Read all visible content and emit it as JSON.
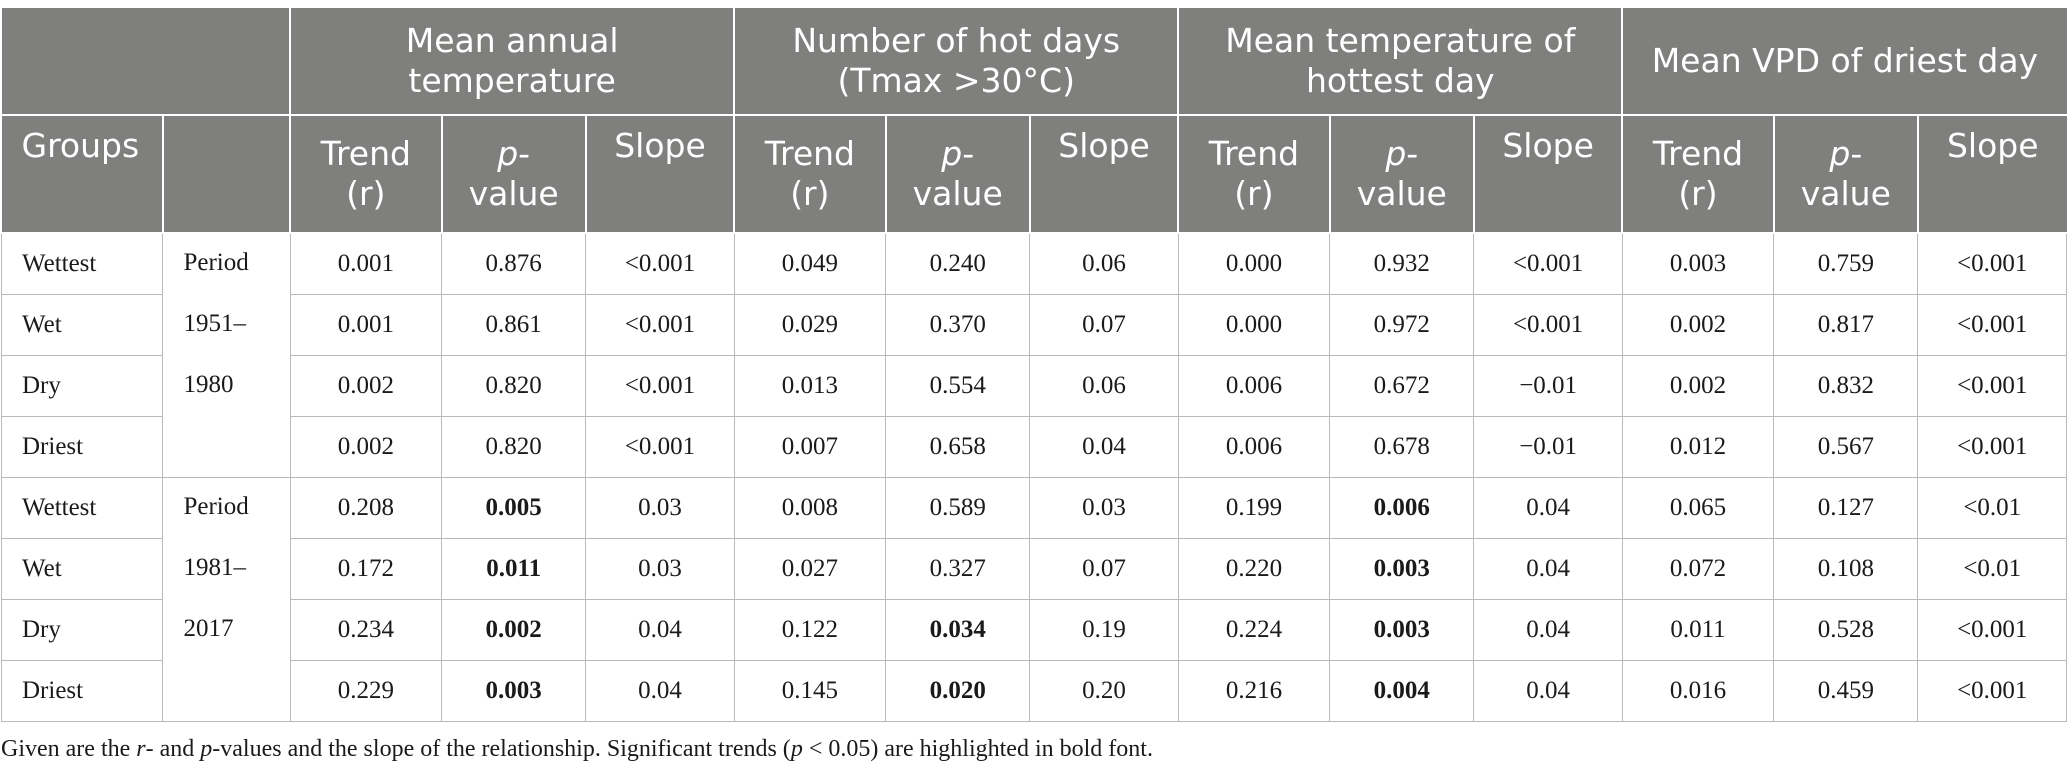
{
  "headers": {
    "groups": "Groups",
    "mean_annual_temp": "Mean annual  temperature",
    "hot_days": "Number of hot days (Tmax >30°C)",
    "mean_temp_hottest": "Mean temperature of hottest day",
    "mean_vpd": "Mean VPD of driest day",
    "trend": "Trend (r)",
    "p_italic": "p",
    "p_rest": "- value",
    "slope": "Slope"
  },
  "periods": [
    {
      "lines": [
        "Period",
        "1951–",
        "1980"
      ],
      "rows": [
        {
          "group": "Wettest",
          "cells": [
            "0.001",
            "0.876",
            "<0.001",
            "0.049",
            "0.240",
            "0.06",
            "0.000",
            "0.932",
            "<0.001",
            "0.003",
            "0.759",
            "<0.001"
          ],
          "bold": []
        },
        {
          "group": "Wet",
          "cells": [
            "0.001",
            "0.861",
            "<0.001",
            "0.029",
            "0.370",
            "0.07",
            "0.000",
            "0.972",
            "<0.001",
            "0.002",
            "0.817",
            "<0.001"
          ],
          "bold": []
        },
        {
          "group": "Dry",
          "cells": [
            "0.002",
            "0.820",
            "<0.001",
            "0.013",
            "0.554",
            "0.06",
            "0.006",
            "0.672",
            "−0.01",
            "0.002",
            "0.832",
            "<0.001"
          ],
          "bold": []
        },
        {
          "group": "Driest",
          "cells": [
            "0.002",
            "0.820",
            "<0.001",
            "0.007",
            "0.658",
            "0.04",
            "0.006",
            "0.678",
            "−0.01",
            "0.012",
            "0.567",
            "<0.001"
          ],
          "bold": []
        }
      ]
    },
    {
      "lines": [
        "Period",
        "1981–",
        "2017"
      ],
      "rows": [
        {
          "group": "Wettest",
          "cells": [
            "0.208",
            "0.005",
            "0.03",
            "0.008",
            "0.589",
            "0.03",
            "0.199",
            "0.006",
            "0.04",
            "0.065",
            "0.127",
            "<0.01"
          ],
          "bold": [
            1,
            7
          ]
        },
        {
          "group": "Wet",
          "cells": [
            "0.172",
            "0.011",
            "0.03",
            "0.027",
            "0.327",
            "0.07",
            "0.220",
            "0.003",
            "0.04",
            "0.072",
            "0.108",
            "<0.01"
          ],
          "bold": [
            1,
            7
          ]
        },
        {
          "group": "Dry",
          "cells": [
            "0.234",
            "0.002",
            "0.04",
            "0.122",
            "0.034",
            "0.19",
            "0.224",
            "0.003",
            "0.04",
            "0.011",
            "0.528",
            "<0.001"
          ],
          "bold": [
            1,
            4,
            7
          ]
        },
        {
          "group": "Driest",
          "cells": [
            "0.229",
            "0.003",
            "0.04",
            "0.145",
            "0.020",
            "0.20",
            "0.216",
            "0.004",
            "0.04",
            "0.016",
            "0.459",
            "<0.001"
          ],
          "bold": [
            1,
            4,
            7
          ]
        }
      ]
    }
  ],
  "footnote": {
    "t1": "Given are the ",
    "r": "r",
    "t2": "- and ",
    "p": "p",
    "t3": "-values and the slope of the relationship. Significant trends (",
    "p2": "p",
    "t4": " < 0.05) are highlighted in bold font."
  }
}
